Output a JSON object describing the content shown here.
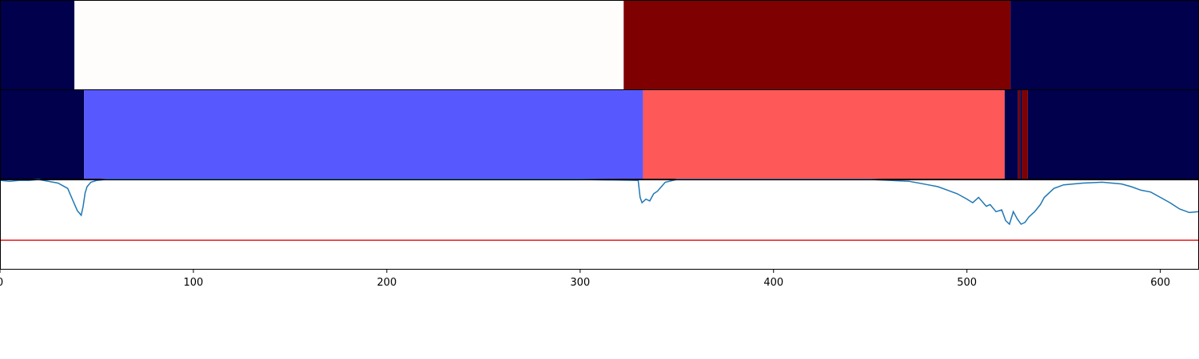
{
  "chart_data": [
    {
      "type": "heatmap",
      "panel": "top-band",
      "xlim": [
        0,
        620
      ],
      "colormap": "seismic",
      "segments": [
        {
          "x0": 0,
          "x1": 38.5,
          "color": "#00004c"
        },
        {
          "x0": 38.5,
          "x1": 322.5,
          "color": "#fffcfc"
        },
        {
          "x0": 322.5,
          "x1": 522.5,
          "color": "#7f0000"
        },
        {
          "x0": 522.5,
          "x1": 620,
          "color": "#00004c"
        }
      ]
    },
    {
      "type": "heatmap",
      "panel": "middle-band",
      "xlim": [
        0,
        620
      ],
      "colormap": "seismic",
      "segments": [
        {
          "x0": 0,
          "x1": 43.5,
          "color": "#00004c"
        },
        {
          "x0": 43.5,
          "x1": 332.5,
          "color": "#5858ff"
        },
        {
          "x0": 332.5,
          "x1": 519.5,
          "color": "#ff5858"
        },
        {
          "x0": 519.5,
          "x1": 526.5,
          "color": "#00004c"
        },
        {
          "x0": 526.5,
          "x1": 527.5,
          "color": "#7f0000"
        },
        {
          "x0": 527.5,
          "x1": 528.5,
          "color": "#00004c"
        },
        {
          "x0": 528.5,
          "x1": 531.5,
          "color": "#7f0000"
        },
        {
          "x0": 531.5,
          "x1": 620,
          "color": "#00004c"
        }
      ]
    },
    {
      "type": "line",
      "panel": "bottom-line",
      "xlim": [
        0,
        620
      ],
      "ylim": [
        -1.0,
        0.0
      ],
      "x_ticks": [
        0,
        100,
        200,
        300,
        400,
        500,
        600
      ],
      "x_tick_labels": [
        "0",
        "100",
        "200",
        "300",
        "400",
        "500",
        "600"
      ],
      "threshold": {
        "y": -0.68,
        "color": "#e41a1c"
      },
      "line_color": "#1f77b4",
      "series": [
        {
          "x": [
            0,
            5,
            10,
            15,
            20,
            25,
            30,
            35,
            38,
            40,
            42,
            43,
            44,
            45,
            47,
            50,
            55,
            60,
            100,
            200,
            300,
            330,
            331,
            332,
            334,
            336,
            338,
            340,
            342,
            344,
            350,
            400,
            450,
            470,
            480,
            485,
            490,
            495,
            500,
            503,
            506,
            510,
            512,
            515,
            518,
            520,
            522,
            524,
            526,
            528,
            530,
            532,
            535,
            538,
            540,
            545,
            550,
            560,
            570,
            580,
            585,
            590,
            595,
            600,
            605,
            610,
            615,
            620
          ],
          "y": [
            -0.01,
            -0.02,
            -0.01,
            -0.01,
            0.0,
            -0.02,
            -0.04,
            -0.1,
            -0.25,
            -0.35,
            -0.4,
            -0.3,
            -0.15,
            -0.08,
            -0.03,
            -0.01,
            0.0,
            0.0,
            0.0,
            0.0,
            0.0,
            -0.01,
            -0.2,
            -0.26,
            -0.22,
            -0.24,
            -0.16,
            -0.13,
            -0.08,
            -0.03,
            0.0,
            0.0,
            0.0,
            -0.02,
            -0.06,
            -0.08,
            -0.12,
            -0.16,
            -0.22,
            -0.26,
            -0.2,
            -0.3,
            -0.28,
            -0.36,
            -0.34,
            -0.46,
            -0.5,
            -0.36,
            -0.44,
            -0.5,
            -0.48,
            -0.42,
            -0.36,
            -0.28,
            -0.2,
            -0.1,
            -0.06,
            -0.04,
            -0.03,
            -0.05,
            -0.08,
            -0.12,
            -0.14,
            -0.2,
            -0.26,
            -0.33,
            -0.37,
            -0.36
          ]
        }
      ]
    }
  ]
}
